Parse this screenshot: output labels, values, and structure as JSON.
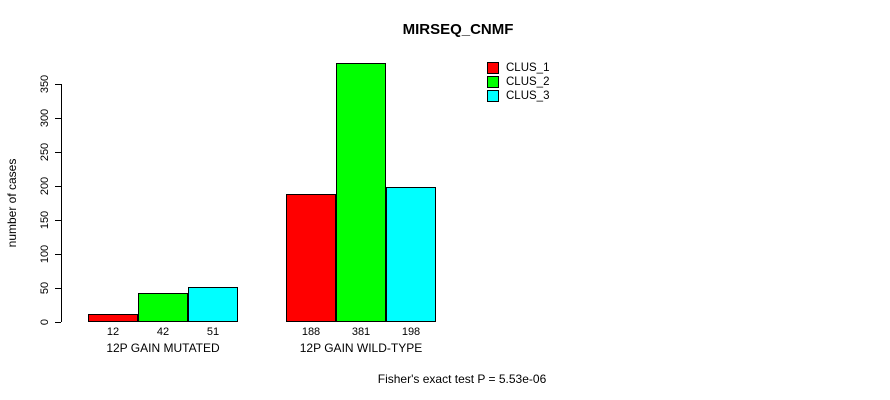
{
  "title": "MIRSEQ_CNMF",
  "footer": "Fisher's exact test P = 5.53e-06",
  "colors": {
    "clus_1": "#FF0000",
    "clus_2": "#00FF00",
    "clus_3": "#00FFFF",
    "axis": "#000000",
    "background": "#FFFFFF"
  },
  "legend": {
    "position": "top-right",
    "items": [
      {
        "label": "CLUS_1",
        "color": "#FF0000"
      },
      {
        "label": "CLUS_2",
        "color": "#00FF00"
      },
      {
        "label": "CLUS_3",
        "color": "#00FFFF"
      }
    ]
  },
  "chart_data": {
    "type": "bar",
    "title": "MIRSEQ_CNMF",
    "xlabel": "",
    "ylabel": "number of cases",
    "categories": [
      "12P GAIN MUTATED",
      "12P GAIN WILD-TYPE"
    ],
    "series": [
      {
        "name": "CLUS_1",
        "color": "#FF0000",
        "values": [
          12,
          188
        ]
      },
      {
        "name": "CLUS_2",
        "color": "#00FF00",
        "values": [
          42,
          381
        ]
      },
      {
        "name": "CLUS_3",
        "color": "#00FFFF",
        "values": [
          51,
          198
        ]
      }
    ],
    "bar_value_labels": [
      [
        "12",
        "42",
        "51"
      ],
      [
        "188",
        "381",
        "198"
      ]
    ],
    "yticks": [
      0,
      50,
      100,
      150,
      200,
      250,
      300,
      350
    ],
    "ylim": [
      0,
      381
    ],
    "grid": false,
    "legend_position": "top-right",
    "annotation": "Fisher's exact test P = 5.53e-06"
  }
}
